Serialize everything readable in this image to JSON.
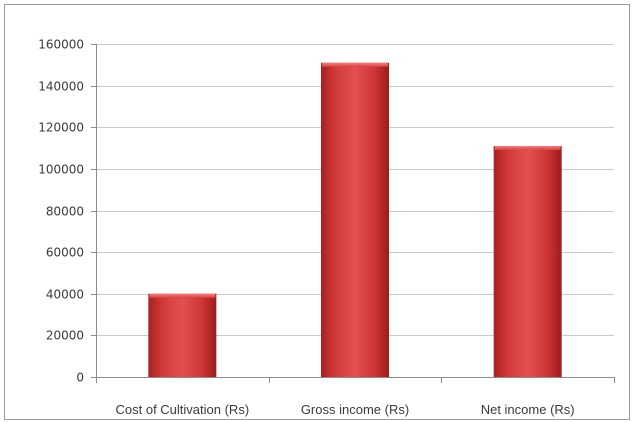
{
  "chart_data": {
    "type": "bar",
    "title": "",
    "xlabel": "",
    "ylabel": "",
    "categories": [
      "Cost of Cultivation (Rs)",
      "Gross income (Rs)",
      "Net income (Rs)"
    ],
    "values": [
      40000,
      151000,
      111000
    ],
    "ylim": [
      0,
      160000
    ],
    "yticks": [
      0,
      20000,
      40000,
      60000,
      80000,
      100000,
      120000,
      140000,
      160000
    ],
    "grid": true,
    "legend": "none",
    "bar_color": "#cc3333"
  }
}
